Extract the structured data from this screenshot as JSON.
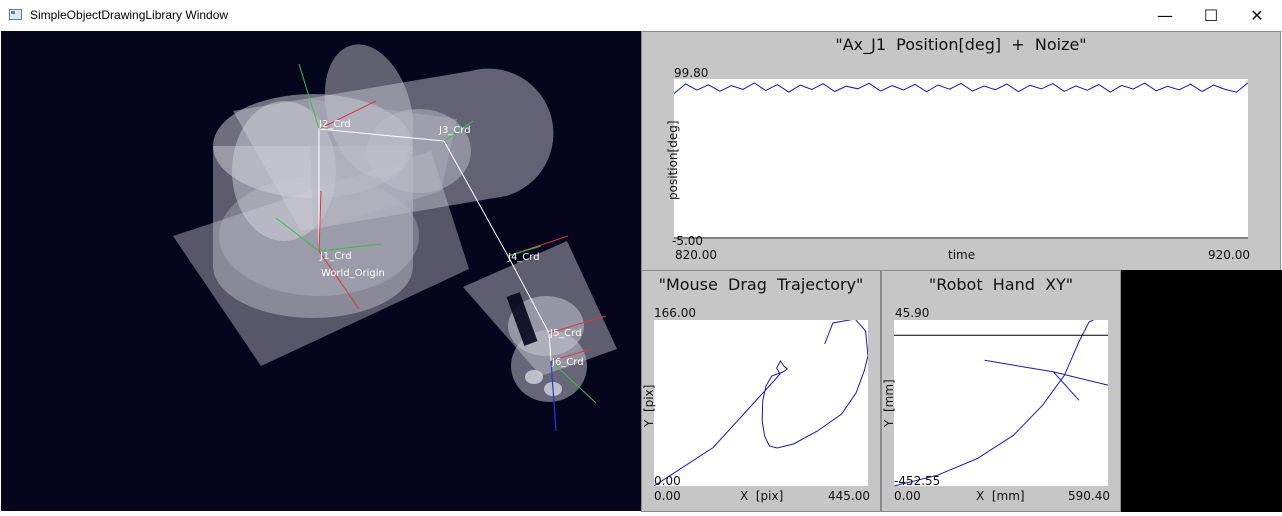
{
  "window": {
    "title": "SimpleObjectDrawingLibrary Window",
    "icon": "app-window-icon",
    "controls": {
      "minimize": "—",
      "maximize": "☐",
      "close": "✕"
    }
  },
  "viewport": {
    "coord_labels": [
      "J2_Crd",
      "J3_Crd",
      "J1_Crd",
      "World_Origin",
      "J4_Crd",
      "J5_Crd",
      "J6_Crd"
    ]
  },
  "plots": {
    "position": {
      "title": "\"Ax_J1  Position[deg]  +  Noize\"",
      "ymax": "99.80",
      "ymin": "-5.00",
      "xmin": "820.00",
      "xmax": "920.00",
      "xlabel": "time",
      "ylabel": "position[deg]"
    },
    "mouse": {
      "title": "\"Mouse  Drag  Trajectory\"",
      "ymax": "166.00",
      "ymin": "0.00",
      "xmin": "0.00",
      "xmax": "445.00",
      "xlabel": "X  [pix]",
      "ylabel": "Y  [pix]"
    },
    "robot": {
      "title": "\"Robot  Hand  XY\"",
      "ymax": "45.90",
      "ymin": "-452.55",
      "xmin": "0.00",
      "xmax": "590.40",
      "xlabel": "X  [mm]",
      "ylabel": "Y  [mm]"
    }
  },
  "chart_data": [
    {
      "type": "line",
      "title": "\"Ax_J1  Position[deg]  +  Noize\"",
      "xlabel": "time",
      "ylabel": "position[deg]",
      "xlim": [
        820.0,
        920.0
      ],
      "ylim": [
        -5.0,
        99.8
      ],
      "series": [
        {
          "color": "#1a1aa8",
          "x": [
            820,
            822,
            824,
            826,
            828,
            830,
            832,
            834,
            836,
            838,
            840,
            842,
            844,
            846,
            848,
            850,
            852,
            854,
            856,
            858,
            860,
            862,
            864,
            866,
            868,
            870,
            872,
            874,
            876,
            878,
            880,
            882,
            884,
            886,
            888,
            890,
            892,
            894,
            896,
            898,
            900,
            902,
            904,
            906,
            908,
            910,
            912,
            914,
            916,
            918,
            920
          ],
          "y": [
            90.2,
            96.6,
            92.5,
            96.0,
            91.8,
            95.4,
            93.0,
            97.2,
            92.2,
            96.1,
            91.2,
            95.8,
            92.9,
            96.7,
            91.6,
            95.1,
            93.4,
            97.0,
            91.9,
            95.5,
            92.6,
            96.3,
            91.4,
            95.9,
            93.1,
            96.9,
            92.0,
            95.2,
            92.8,
            96.5,
            91.5,
            95.7,
            93.3,
            96.8,
            91.7,
            95.3,
            92.4,
            96.2,
            91.3,
            95.6,
            93.2,
            97.1,
            92.1,
            95.0,
            92.7,
            96.4,
            91.6,
            95.8,
            93.0,
            91.2,
            97.3
          ]
        }
      ]
    },
    {
      "type": "line",
      "title": "\"Mouse  Drag  Trajectory\"",
      "xlabel": "X  [pix]",
      "ylabel": "Y  [pix]",
      "xlim": [
        0.0,
        445.0
      ],
      "ylim": [
        0.0,
        166.0
      ],
      "series": [
        {
          "color": "#1a1aa8",
          "x": [
            0,
            123,
            255,
            262,
            255,
            263,
            270,
            277,
            268,
            245,
            233,
            226,
            225,
            230,
            240,
            256,
            290,
            340,
            390,
            420,
            437,
            445,
            440,
            418,
            372,
            355
          ],
          "y": [
            0,
            38.5,
            108,
            112,
            118,
            125,
            120,
            117,
            114,
            110,
            100,
            85,
            65,
            50,
            40,
            38,
            42,
            55,
            72,
            93,
            115,
            130,
            155,
            167,
            163,
            142
          ]
        }
      ]
    },
    {
      "type": "line",
      "title": "\"Robot  Hand  XY\"",
      "xlabel": "X  [mm]",
      "ylabel": "Y  [mm]",
      "xlim": [
        0.0,
        590.4
      ],
      "ylim": [
        -452.55,
        45.9
      ],
      "series": [
        {
          "name": "",
          "color": "#1a1aa8",
          "x": [
            0,
            120,
            230,
            330,
            410,
            470,
            510,
            538,
            550
          ],
          "y": [
            -452.55,
            -420,
            -370,
            -300,
            -210,
            -120,
            -20,
            40,
            45.9
          ]
        },
        {
          "color": "#1a1aa8",
          "x": [
            250,
            440,
            590.4
          ],
          "y": [
            -75,
            -110,
            -150
          ]
        },
        {
          "color": "#1a1aa8",
          "x": [
            440,
            510
          ],
          "y": [
            -110,
            -195
          ]
        },
        {
          "color": "#000000",
          "x": [
            0,
            590.4
          ],
          "y": [
            0,
            0
          ]
        }
      ]
    }
  ]
}
